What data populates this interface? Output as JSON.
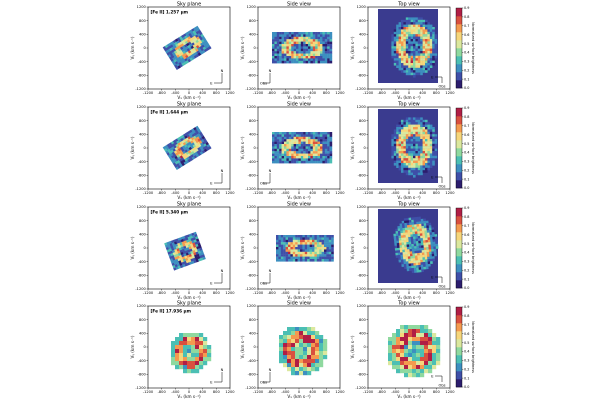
{
  "figure": {
    "column_titles": [
      "Sky plane",
      "Side view",
      "Top view"
    ]
  },
  "chart_data": {
    "type": "heatmap",
    "colorbar": {
      "label": "Normalized surface brightness",
      "ticks": [
        "0.0",
        "0.1",
        "0.2",
        "0.3",
        "0.4",
        "0.5",
        "0.6",
        "0.7",
        "0.8",
        "0.9"
      ],
      "range": [
        0,
        0.9
      ],
      "colormap": [
        "#2c1d6e",
        "#3f4fa8",
        "#3d8fc0",
        "#4bbfb4",
        "#8fd99f",
        "#dbe89e",
        "#f6d67b",
        "#f49a4f",
        "#d9503f",
        "#b01e45"
      ]
    },
    "axes": {
      "x_ticks": [
        "-1200",
        "-800",
        "-400",
        "0",
        "400",
        "800",
        "1200"
      ],
      "y_ticks": [
        "-1200",
        "-800",
        "-400",
        "0",
        "400",
        "800",
        "1200"
      ],
      "sky": {
        "xlabel": "Vₓ (km s⁻¹)",
        "ylabel": "Vᵧ (km s⁻¹)"
      },
      "side": {
        "xlabel": "Vₓ (km s⁻¹)",
        "ylabel": "Vᵧ (km s⁻¹)"
      },
      "top": {
        "xlabel": "Vₓ (km s⁻¹)",
        "ylabel": "Vᵧ (km s⁻¹)"
      }
    },
    "compass": {
      "north": "N",
      "east": "E",
      "observer": "Obs"
    },
    "rows": [
      {
        "line": "[Fe II] 1.257 μm"
      },
      {
        "line": "[Fe II] 1.644 μm"
      },
      {
        "line": "[Fe II] 5.340 μm"
      },
      {
        "line": "[Fe II] 17.936 μm"
      }
    ]
  }
}
